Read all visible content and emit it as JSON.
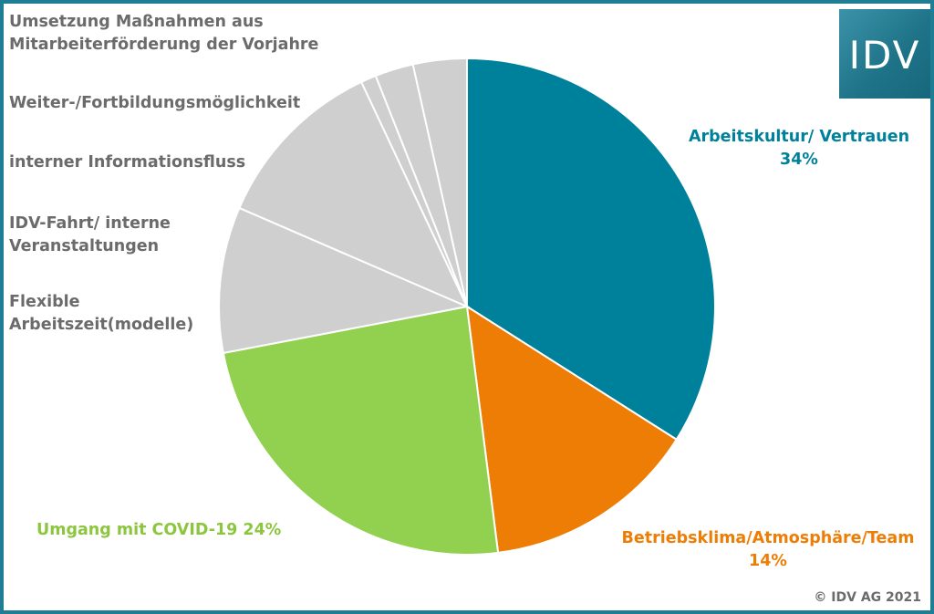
{
  "chart_data": {
    "type": "pie",
    "title": "",
    "colors": {
      "blue": "#00819b",
      "orange": "#ee7d05",
      "green": "#92d050",
      "grey": "#cfcfcf"
    },
    "slices": [
      {
        "label": "Arbeitskultur/ Vertrauen",
        "value_label": "34%",
        "value": 34,
        "color": "#00819b"
      },
      {
        "label": "Betriebsklima/Atmosphäre/Team",
        "value_label": "14%",
        "value": 14,
        "color": "#ee7d05"
      },
      {
        "label": "Umgang mit COVID-19",
        "value_label": "24%",
        "value": 24,
        "color": "#92d050"
      },
      {
        "label": "Flexible Arbeitszeit(modelle)",
        "value": 9.5,
        "color": "#cfcfcf"
      },
      {
        "label": "IDV-Fahrt/ interne Veranstaltungen",
        "value": 11.5,
        "color": "#cfcfcf"
      },
      {
        "label": "interner Informationsfluss",
        "value": 1,
        "color": "#cfcfcf"
      },
      {
        "label": "Weiter-/Fortbildungsmöglichkeit",
        "value": 2.5,
        "color": "#cfcfcf"
      },
      {
        "label": "Umsetzung Maßnahmen aus Mitarbeiterförderung der Vorjahre",
        "value": 3.5,
        "color": "#cfcfcf"
      }
    ]
  },
  "labels": {
    "umsetzung_line1": "Umsetzung Maßnahmen aus",
    "umsetzung_line2": "Mitarbeiterförderung der Vorjahre",
    "weiter": "Weiter-/Fortbildungsmöglichkeit",
    "intern_info": "interner Informationsfluss",
    "idv_fahrt_line1": "IDV-Fahrt/ interne",
    "idv_fahrt_line2": "Veranstaltungen",
    "flexible_line1": "Flexible",
    "flexible_line2": "Arbeitszeit(modelle)",
    "arbeitskultur": "Arbeitskultur/ Vertrauen",
    "arbeitskultur_pct": "34%",
    "betriebsklima": "Betriebsklima/Atmosphäre/Team",
    "betriebsklima_pct": "14%",
    "covid": "Umgang mit COVID-19 24%"
  },
  "logo": {
    "text": "IDV"
  },
  "copyright": "© IDV AG 2021"
}
